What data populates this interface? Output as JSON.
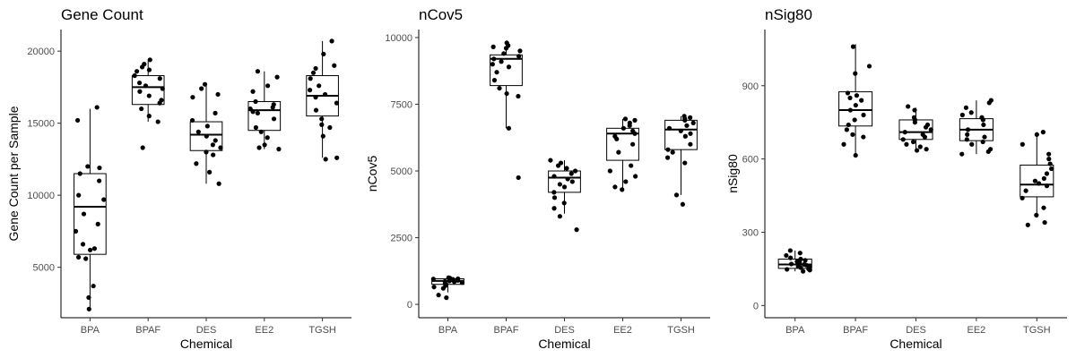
{
  "chart_data": [
    {
      "type": "boxplot",
      "title": "Gene Count",
      "xlabel": "Chemical",
      "ylabel": "Gene Count per Sample",
      "categories": [
        "BPA",
        "BPAF",
        "DES",
        "EE2",
        "TGSH"
      ],
      "ylim": [
        1500,
        21500
      ],
      "yticks": [
        5000,
        10000,
        15000,
        20000
      ],
      "yticklabels": [
        "5000",
        "10000",
        "15000",
        "20000"
      ],
      "grid": false,
      "boxes": [
        {
          "category": "BPA",
          "whisker_low": 2100,
          "q1": 5900,
          "median": 9200,
          "q3": 11500,
          "whisker_high": 16000
        },
        {
          "category": "BPAF",
          "whisker_low": 15100,
          "q1": 16300,
          "median": 17500,
          "q3": 18300,
          "whisker_high": 19400
        },
        {
          "category": "DES",
          "whisker_low": 10800,
          "q1": 13100,
          "median": 14200,
          "q3": 15100,
          "whisker_high": 17700
        },
        {
          "category": "EE2",
          "whisker_low": 13200,
          "q1": 14500,
          "median": 15900,
          "q3": 16500,
          "whisker_high": 18600
        },
        {
          "category": "TGSH",
          "whisker_low": 12600,
          "q1": 15500,
          "median": 16900,
          "q3": 18300,
          "whisker_high": 20700
        }
      ],
      "points": [
        {
          "category": "BPA",
          "values": [
            16100,
            15200,
            12000,
            11900,
            11500,
            11000,
            10000,
            9700,
            8700,
            8000,
            7500,
            6600,
            6300,
            6200,
            5700,
            5600,
            3700,
            2900,
            2100
          ]
        },
        {
          "category": "BPAF",
          "values": [
            19400,
            19100,
            18900,
            18700,
            18600,
            18300,
            18100,
            17800,
            17600,
            17400,
            17200,
            16900,
            16600,
            16400,
            16000,
            15500,
            15100,
            13300
          ]
        },
        {
          "category": "DES",
          "values": [
            17700,
            17400,
            17000,
            16800,
            15700,
            15200,
            14800,
            14400,
            14100,
            13800,
            13500,
            13300,
            13000,
            12800,
            12200,
            11600,
            10800
          ]
        },
        {
          "category": "EE2",
          "values": [
            18600,
            18200,
            17600,
            17200,
            16500,
            16300,
            16100,
            16000,
            15800,
            15700,
            15300,
            14700,
            14400,
            14000,
            13500,
            13300,
            13200
          ]
        },
        {
          "category": "TGSH",
          "values": [
            20700,
            19800,
            19000,
            18800,
            18500,
            18100,
            17600,
            17300,
            17000,
            16800,
            16400,
            15900,
            15300,
            14900,
            14700,
            14100,
            12600,
            12500
          ]
        }
      ]
    },
    {
      "type": "boxplot",
      "title": "nCov5",
      "xlabel": "Chemical",
      "ylabel": "nCov5",
      "categories": [
        "BPA",
        "BPAF",
        "DES",
        "EE2",
        "TGSH"
      ],
      "ylim": [
        -500,
        10300
      ],
      "yticks": [
        0,
        2500,
        5000,
        7500,
        10000
      ],
      "yticklabels": [
        "0",
        "2500",
        "5000",
        "7500",
        "10000"
      ],
      "grid": false,
      "boxes": [
        {
          "category": "BPA",
          "whisker_low": 450,
          "q1": 750,
          "median": 880,
          "q3": 960,
          "whisker_high": 1000
        },
        {
          "category": "BPAF",
          "whisker_low": 6600,
          "q1": 8200,
          "median": 9200,
          "q3": 9350,
          "whisker_high": 9800
        },
        {
          "category": "DES",
          "whisker_low": 3400,
          "q1": 4200,
          "median": 4750,
          "q3": 5000,
          "whisker_high": 5400
        },
        {
          "category": "EE2",
          "whisker_low": 4300,
          "q1": 5400,
          "median": 6400,
          "q3": 6600,
          "whisker_high": 6950
        },
        {
          "category": "TGSH",
          "whisker_low": 4100,
          "q1": 5800,
          "median": 6550,
          "q3": 6900,
          "whisker_high": 7050
        }
      ],
      "points": [
        {
          "category": "BPA",
          "values": [
            1000,
            980,
            960,
            950,
            940,
            920,
            900,
            880,
            860,
            850,
            820,
            780,
            750,
            700,
            650,
            600,
            350,
            250
          ]
        },
        {
          "category": "BPAF",
          "values": [
            9800,
            9700,
            9650,
            9600,
            9500,
            9400,
            9300,
            9200,
            9100,
            9000,
            8900,
            8700,
            8400,
            8100,
            7900,
            7800,
            6600,
            4750
          ]
        },
        {
          "category": "DES",
          "values": [
            5400,
            5300,
            5200,
            5100,
            5000,
            4900,
            4800,
            4700,
            4600,
            4500,
            4400,
            4200,
            4000,
            3800,
            3600,
            3300,
            2800
          ]
        },
        {
          "category": "EE2",
          "values": [
            6950,
            6900,
            6800,
            6700,
            6600,
            6500,
            6400,
            6300,
            6200,
            6000,
            5700,
            5200,
            5000,
            4800,
            4600,
            4400,
            4300
          ]
        },
        {
          "category": "TGSH",
          "values": [
            7050,
            7000,
            6950,
            6900,
            6800,
            6700,
            6600,
            6500,
            6400,
            6300,
            6000,
            5800,
            5700,
            5500,
            5300,
            4100,
            3750
          ]
        }
      ]
    },
    {
      "type": "boxplot",
      "title": "nSig80",
      "xlabel": "Chemical",
      "ylabel": "nSig80",
      "categories": [
        "BPA",
        "BPAF",
        "DES",
        "EE2",
        "TGSH"
      ],
      "ylim": [
        -50,
        1130
      ],
      "yticks": [
        0,
        300,
        600,
        900
      ],
      "yticklabels": [
        "0",
        "300",
        "600",
        "900"
      ],
      "grid": false,
      "boxes": [
        {
          "category": "BPA",
          "whisker_low": 140,
          "q1": 152,
          "median": 168,
          "q3": 190,
          "whisker_high": 225
        },
        {
          "category": "BPAF",
          "whisker_low": 620,
          "q1": 735,
          "median": 800,
          "q3": 875,
          "whisker_high": 1070
        },
        {
          "category": "DES",
          "whisker_low": 640,
          "q1": 680,
          "median": 710,
          "q3": 760,
          "whisker_high": 810
        },
        {
          "category": "EE2",
          "whisker_low": 620,
          "q1": 675,
          "median": 720,
          "q3": 765,
          "whisker_high": 840
        },
        {
          "category": "TGSH",
          "whisker_low": 360,
          "q1": 445,
          "median": 495,
          "q3": 575,
          "whisker_high": 710
        }
      ],
      "points": [
        {
          "category": "BPA",
          "values": [
            225,
            215,
            205,
            195,
            190,
            185,
            180,
            175,
            170,
            168,
            165,
            160,
            158,
            155,
            150,
            148,
            145,
            140
          ]
        },
        {
          "category": "BPAF",
          "values": [
            1060,
            980,
            950,
            870,
            860,
            850,
            840,
            820,
            800,
            780,
            760,
            740,
            720,
            700,
            690,
            660,
            615
          ]
        },
        {
          "category": "DES",
          "values": [
            815,
            800,
            770,
            760,
            750,
            740,
            730,
            720,
            710,
            700,
            690,
            680,
            670,
            660,
            650,
            640,
            635
          ]
        },
        {
          "category": "EE2",
          "values": [
            840,
            830,
            810,
            790,
            780,
            770,
            760,
            740,
            720,
            700,
            690,
            680,
            670,
            660,
            640,
            630,
            620
          ]
        },
        {
          "category": "TGSH",
          "values": [
            710,
            700,
            660,
            620,
            600,
            580,
            560,
            540,
            520,
            510,
            500,
            490,
            470,
            440,
            400,
            370,
            340,
            330
          ]
        }
      ]
    }
  ]
}
